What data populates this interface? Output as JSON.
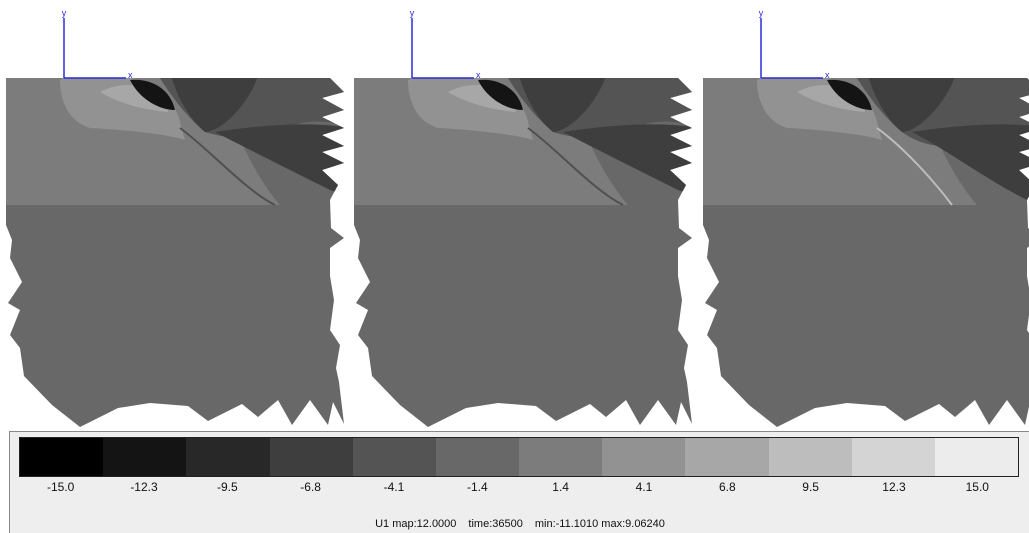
{
  "chart_data": {
    "type": "heatmap",
    "panel_count": 3,
    "axis_labels": {
      "vertical": "y",
      "horizontal": "x"
    },
    "colorbar": {
      "levels": [
        -15.0,
        -12.3,
        -9.5,
        -6.8,
        -4.1,
        -1.4,
        1.4,
        4.1,
        6.8,
        9.5,
        12.3,
        15.0
      ],
      "level_labels": [
        "-15.0",
        "-12.3",
        "-9.5",
        "-6.8",
        "-4.1",
        "-1.4",
        "1.4",
        "4.1",
        "6.8",
        "9.5",
        "12.3",
        "15.0"
      ],
      "colors": [
        "#000000",
        "#141414",
        "#282828",
        "#3e3e3e",
        "#545454",
        "#686868",
        "#7c7c7c",
        "#929292",
        "#a7a7a7",
        "#bdbdbd",
        "#d4d4d4",
        "#ececec"
      ]
    },
    "footer": {
      "map_label": "U1 map:12.0000",
      "time_label": "time:36500",
      "minmax_label": "min:-11.1010 max:9.06240"
    }
  }
}
